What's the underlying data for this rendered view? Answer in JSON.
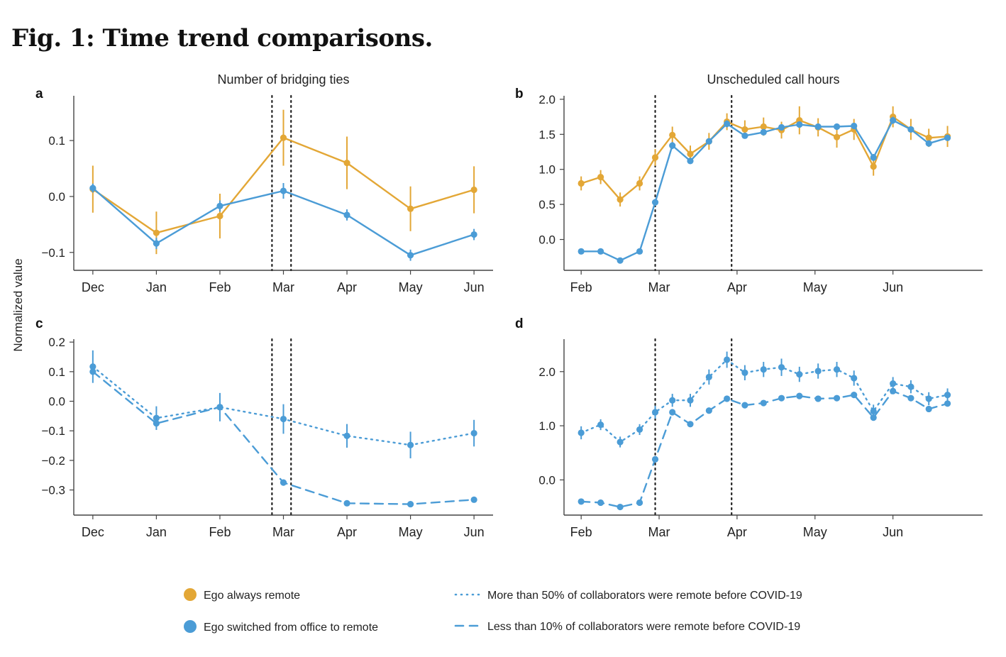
{
  "figure": {
    "title": "Fig. 1: Time trend comparisons.",
    "ylabel": "Normalized value",
    "colors": {
      "always_remote": "#e3a736",
      "switched": "#4b9cd6",
      "axis": "#444444",
      "text": "#222222"
    }
  },
  "legend": {
    "items": [
      {
        "label": "Ego always remote",
        "marker": "dot",
        "color": "#e3a736"
      },
      {
        "label": "Ego switched from office to remote",
        "marker": "dot",
        "color": "#4b9cd6"
      },
      {
        "label": "More than 50% of collaborators were remote before COVID-19",
        "marker": "dotted-line",
        "color": "#4b9cd6"
      },
      {
        "label": "Less than 10% of collaborators were remote before COVID-19",
        "marker": "dashed-line",
        "color": "#4b9cd6"
      }
    ]
  },
  "chart_data": [
    {
      "panel": "a",
      "type": "line",
      "title": "Number of bridging ties",
      "x_unit": "month",
      "xticks": [
        0,
        1,
        2,
        3,
        4,
        5,
        6
      ],
      "xtick_labels": [
        "Dec",
        "Jan",
        "Feb",
        "Mar",
        "Apr",
        "May",
        "Jun"
      ],
      "xlim": [
        -0.3,
        6.3
      ],
      "ylim": [
        -0.132,
        0.18
      ],
      "yticks": [
        -0.1,
        0.0,
        0.1
      ],
      "ytick_labels": [
        "−0.1",
        "0.0",
        "0.1"
      ],
      "vlines": [
        2.82,
        3.12
      ],
      "grid": false,
      "series": [
        {
          "name": "Ego always remote",
          "color": "#e3a736",
          "style": "solid",
          "x": [
            0,
            1,
            2,
            3,
            4,
            5,
            6
          ],
          "y": [
            0.013,
            -0.065,
            -0.035,
            0.105,
            0.06,
            -0.022,
            0.012
          ],
          "err": [
            0.042,
            0.038,
            0.04,
            0.05,
            0.047,
            0.04,
            0.042
          ]
        },
        {
          "name": "Ego switched from office to remote",
          "color": "#4b9cd6",
          "style": "solid",
          "x": [
            0,
            1,
            2,
            3,
            4,
            5,
            6
          ],
          "y": [
            0.015,
            -0.084,
            -0.017,
            0.01,
            -0.033,
            -0.105,
            -0.068
          ],
          "err": [
            0.008,
            0.01,
            0.01,
            0.014,
            0.01,
            0.01,
            0.01
          ]
        }
      ]
    },
    {
      "panel": "b",
      "type": "line",
      "title": "Unscheduled call hours",
      "x_unit": "month",
      "xticks": [
        0,
        1,
        2,
        3,
        4
      ],
      "xtick_labels": [
        "Feb",
        "Mar",
        "Apr",
        "May",
        "Jun"
      ],
      "xlim": [
        -0.22,
        5.15
      ],
      "ylim": [
        -0.44,
        2.05
      ],
      "yticks": [
        0.0,
        0.5,
        1.0,
        1.5,
        2.0
      ],
      "ytick_labels": [
        "0.0",
        "0.5",
        "1.0",
        "1.5",
        "2.0"
      ],
      "vlines": [
        0.95,
        1.93
      ],
      "grid": false,
      "series": [
        {
          "name": "Ego always remote",
          "color": "#e3a736",
          "style": "solid",
          "x": [
            0,
            0.25,
            0.5,
            0.75,
            0.95,
            1.17,
            1.4,
            1.64,
            1.87,
            2.1,
            2.34,
            2.57,
            2.8,
            3.04,
            3.28,
            3.5,
            3.75,
            4.0,
            4.23,
            4.46,
            4.7
          ],
          "y": [
            0.8,
            0.89,
            0.57,
            0.8,
            1.17,
            1.49,
            1.22,
            1.4,
            1.68,
            1.57,
            1.61,
            1.56,
            1.7,
            1.6,
            1.46,
            1.57,
            1.04,
            1.75,
            1.57,
            1.45,
            1.47
          ],
          "err": [
            0.1,
            0.1,
            0.1,
            0.1,
            0.12,
            0.12,
            0.12,
            0.12,
            0.12,
            0.13,
            0.13,
            0.12,
            0.2,
            0.13,
            0.15,
            0.15,
            0.13,
            0.15,
            0.15,
            0.13,
            0.15
          ]
        },
        {
          "name": "Ego switched from office to remote",
          "color": "#4b9cd6",
          "style": "solid",
          "x": [
            0,
            0.25,
            0.5,
            0.75,
            0.95,
            1.17,
            1.4,
            1.64,
            1.87,
            2.1,
            2.34,
            2.57,
            2.8,
            3.04,
            3.28,
            3.5,
            3.75,
            4.0,
            4.23,
            4.46,
            4.7
          ],
          "y": [
            -0.17,
            -0.17,
            -0.3,
            -0.17,
            0.53,
            1.34,
            1.12,
            1.4,
            1.65,
            1.48,
            1.53,
            1.6,
            1.64,
            1.61,
            1.61,
            1.62,
            1.17,
            1.7,
            1.57,
            1.37,
            1.45
          ],
          "err": [
            0.02,
            0.02,
            0.02,
            0.02,
            0.05,
            0.05,
            0.04,
            0.04,
            0.05,
            0.04,
            0.04,
            0.04,
            0.04,
            0.04,
            0.04,
            0.04,
            0.05,
            0.05,
            0.04,
            0.04,
            0.04
          ]
        }
      ]
    },
    {
      "panel": "c",
      "type": "line",
      "title": "",
      "x_unit": "month",
      "xticks": [
        0,
        1,
        2,
        3,
        4,
        5,
        6
      ],
      "xtick_labels": [
        "Dec",
        "Jan",
        "Feb",
        "Mar",
        "Apr",
        "May",
        "Jun"
      ],
      "xlim": [
        -0.3,
        6.3
      ],
      "ylim": [
        -0.385,
        0.21
      ],
      "yticks": [
        -0.3,
        -0.2,
        -0.1,
        0.0,
        0.1,
        0.2
      ],
      "ytick_labels": [
        "−0.3",
        "−0.2",
        "−0.1",
        "0.0",
        "0.1",
        "0.2"
      ],
      "vlines": [
        2.82,
        3.12
      ],
      "grid": false,
      "series": [
        {
          "name": "More than 50% of collaborators were remote before COVID-19",
          "color": "#4b9cd6",
          "style": "dotted",
          "x": [
            0,
            1,
            2,
            3,
            4,
            5,
            6
          ],
          "y": [
            0.117,
            -0.057,
            -0.02,
            -0.06,
            -0.117,
            -0.148,
            -0.108
          ],
          "err": [
            0.055,
            0.04,
            0.048,
            0.05,
            0.04,
            0.045,
            0.045
          ]
        },
        {
          "name": "Less than 10% of collaborators were remote before COVID-19",
          "color": "#4b9cd6",
          "style": "dashed",
          "x": [
            0,
            1,
            2,
            3,
            4,
            5,
            6
          ],
          "y": [
            0.1,
            -0.075,
            -0.02,
            -0.275,
            -0.345,
            -0.348,
            -0.333
          ],
          "err": [
            0.01,
            0.01,
            0.01,
            0.008,
            0.006,
            0.006,
            0.006
          ]
        }
      ]
    },
    {
      "panel": "d",
      "type": "line",
      "title": "",
      "x_unit": "month",
      "xticks": [
        0,
        1,
        2,
        3,
        4
      ],
      "xtick_labels": [
        "Feb",
        "Mar",
        "Apr",
        "May",
        "Jun"
      ],
      "xlim": [
        -0.22,
        5.15
      ],
      "ylim": [
        -0.65,
        2.6
      ],
      "yticks": [
        0.0,
        1.0,
        2.0
      ],
      "ytick_labels": [
        "0.0",
        "1.0",
        "2.0"
      ],
      "vlines": [
        0.95,
        1.93
      ],
      "grid": false,
      "series": [
        {
          "name": "More than 50% of collaborators were remote before COVID-19",
          "color": "#4b9cd6",
          "style": "dotted",
          "x": [
            0,
            0.25,
            0.5,
            0.75,
            0.95,
            1.17,
            1.4,
            1.64,
            1.87,
            2.1,
            2.34,
            2.57,
            2.8,
            3.04,
            3.28,
            3.5,
            3.75,
            4.0,
            4.23,
            4.46,
            4.7
          ],
          "y": [
            0.87,
            1.02,
            0.7,
            0.93,
            1.25,
            1.47,
            1.47,
            1.9,
            2.22,
            1.98,
            2.04,
            2.08,
            1.95,
            2.01,
            2.04,
            1.88,
            1.27,
            1.78,
            1.72,
            1.5,
            1.57
          ],
          "err": [
            0.12,
            0.1,
            0.1,
            0.1,
            0.12,
            0.12,
            0.12,
            0.14,
            0.15,
            0.14,
            0.14,
            0.16,
            0.14,
            0.14,
            0.14,
            0.14,
            0.12,
            0.12,
            0.12,
            0.12,
            0.12
          ]
        },
        {
          "name": "Less than 10% of collaborators were remote before COVID-19",
          "color": "#4b9cd6",
          "style": "dashed",
          "x": [
            0,
            0.25,
            0.5,
            0.75,
            0.95,
            1.17,
            1.4,
            1.64,
            1.87,
            2.1,
            2.34,
            2.57,
            2.8,
            3.04,
            3.28,
            3.5,
            3.75,
            4.0,
            4.23,
            4.46,
            4.7
          ],
          "y": [
            -0.4,
            -0.42,
            -0.5,
            -0.42,
            0.38,
            1.25,
            1.03,
            1.28,
            1.5,
            1.38,
            1.42,
            1.51,
            1.55,
            1.5,
            1.51,
            1.57,
            1.15,
            1.64,
            1.51,
            1.31,
            1.41
          ],
          "err": [
            0.02,
            0.02,
            0.02,
            0.02,
            0.04,
            0.04,
            0.03,
            0.03,
            0.03,
            0.03,
            0.03,
            0.03,
            0.03,
            0.03,
            0.03,
            0.03,
            0.04,
            0.04,
            0.03,
            0.03,
            0.03
          ]
        }
      ]
    }
  ]
}
